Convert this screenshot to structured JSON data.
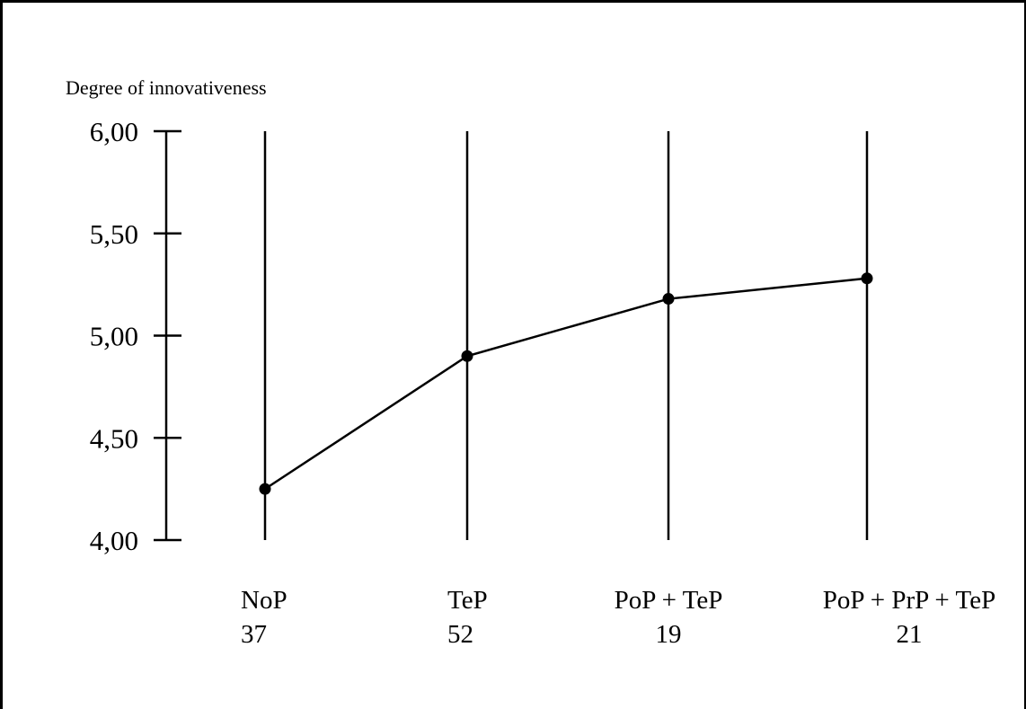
{
  "chart_data": {
    "type": "line",
    "ylabel": "Degree of innovativeness",
    "ylim": [
      4.0,
      6.0
    ],
    "yticks": [
      "6,00",
      "5,50",
      "5,00",
      "4,50",
      "4,00"
    ],
    "ytick_values": [
      6.0,
      5.5,
      5.0,
      4.5,
      4.0
    ],
    "categories": [
      "NoP",
      "TeP",
      "PoP + TeP",
      "PoP + PrP + TeP"
    ],
    "counts": [
      "37",
      "52",
      "19",
      "21"
    ],
    "series": [
      {
        "values": [
          4.25,
          4.9,
          5.18,
          5.28
        ]
      }
    ],
    "grid": "vertical lines at categories",
    "legend": "none",
    "colors": {
      "line": "#000000",
      "marker": "#000000"
    }
  }
}
